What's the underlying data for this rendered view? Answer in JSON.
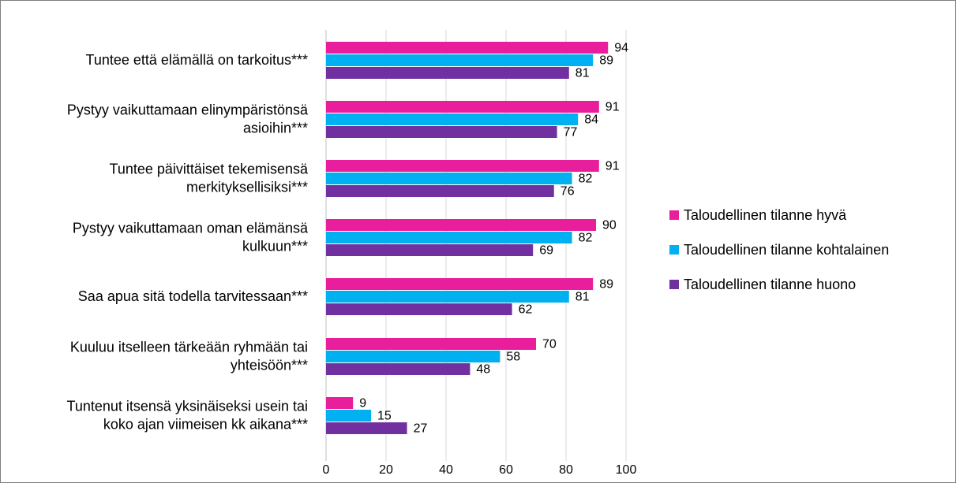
{
  "chart_data": {
    "type": "bar",
    "orientation": "horizontal",
    "categories": [
      [
        "Tuntee että elämällä on tarkoitus***"
      ],
      [
        "Pystyy vaikuttamaan elinympäristönsä",
        "asioihin***"
      ],
      [
        "Tuntee päivittäiset tekemisensä",
        "merkityksellisiksi***"
      ],
      [
        "Pystyy vaikuttamaan oman elämänsä",
        "kulkuun***"
      ],
      [
        "Saa apua sitä todella tarvitessaan***"
      ],
      [
        "Kuuluu itselleen tärkeään ryhmään tai",
        "yhteisöön***"
      ],
      [
        "Tuntenut itsensä yksinäiseksi usein tai",
        "koko ajan viimeisen kk aikana***"
      ]
    ],
    "series": [
      {
        "name": "Taloudellinen tilanne hyvä",
        "color": "#e91e9c",
        "values": [
          94,
          91,
          91,
          90,
          89,
          70,
          9
        ]
      },
      {
        "name": "Taloudellinen tilanne kohtalainen",
        "color": "#00b0f0",
        "values": [
          89,
          84,
          82,
          82,
          81,
          58,
          15
        ]
      },
      {
        "name": "Taloudellinen tilanne huono",
        "color": "#7030a0",
        "values": [
          81,
          77,
          76,
          69,
          62,
          48,
          27
        ]
      }
    ],
    "xlim": [
      0,
      100
    ],
    "xticks": [
      0,
      20,
      40,
      60,
      80,
      100
    ],
    "grid": true,
    "legend_position": "right",
    "title": "",
    "xlabel": "",
    "ylabel": ""
  }
}
